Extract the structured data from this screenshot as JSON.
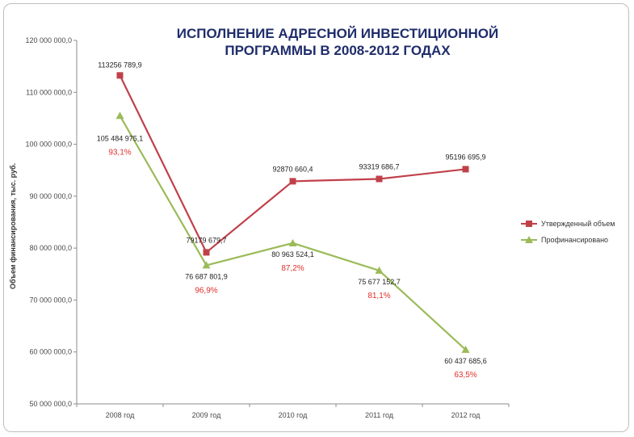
{
  "chart_data": {
    "type": "line",
    "title_lines": [
      "ИСПОЛНЕНИЕ АДРЕСНОЙ ИНВЕСТИЦИОННОЙ",
      "ПРОГРАММЫ В 2008-2012 ГОДАХ"
    ],
    "ylabel": "Объем финансирования, тыс. руб.",
    "categories": [
      "2008 год",
      "2009 год",
      "2010 год",
      "2011 год",
      "2012 год"
    ],
    "ylim": [
      50000000,
      120000000
    ],
    "yticks": [
      50000000,
      60000000,
      70000000,
      80000000,
      90000000,
      100000000,
      110000000,
      120000000
    ],
    "ytick_labels": [
      "50 000 000,0",
      "60 000 000,0",
      "70 000 000,0",
      "80 000 000,0",
      "90 000 000,0",
      "100 000 000,0",
      "110 000 000,0",
      "120 000 000,0"
    ],
    "grid": false,
    "legend_position": "right",
    "series": [
      {
        "name": "Утвержденный объем",
        "color": "#c0404a",
        "marker": "square",
        "values": [
          113256789.9,
          79179679.7,
          92870660.4,
          93319686.7,
          95196695.9
        ],
        "labels": [
          "113256 789,9",
          "79179 679,7",
          "92870 660,4",
          "93319 686,7",
          "95196 695,9"
        ]
      },
      {
        "name": "Профинансировано",
        "color": "#9bbb59",
        "marker": "triangle",
        "values": [
          105484975.1,
          76687801.9,
          80963524.1,
          75677152.7,
          60437685.6
        ],
        "labels": [
          "105 484 975,1",
          "76 687 801,9",
          "80 963 524,1",
          "75 677 152,7",
          "60 437 685,6"
        ]
      }
    ],
    "percent_labels": [
      "93,1%",
      "96,9%",
      "87,2%",
      "81,1%",
      "63,5%"
    ]
  }
}
